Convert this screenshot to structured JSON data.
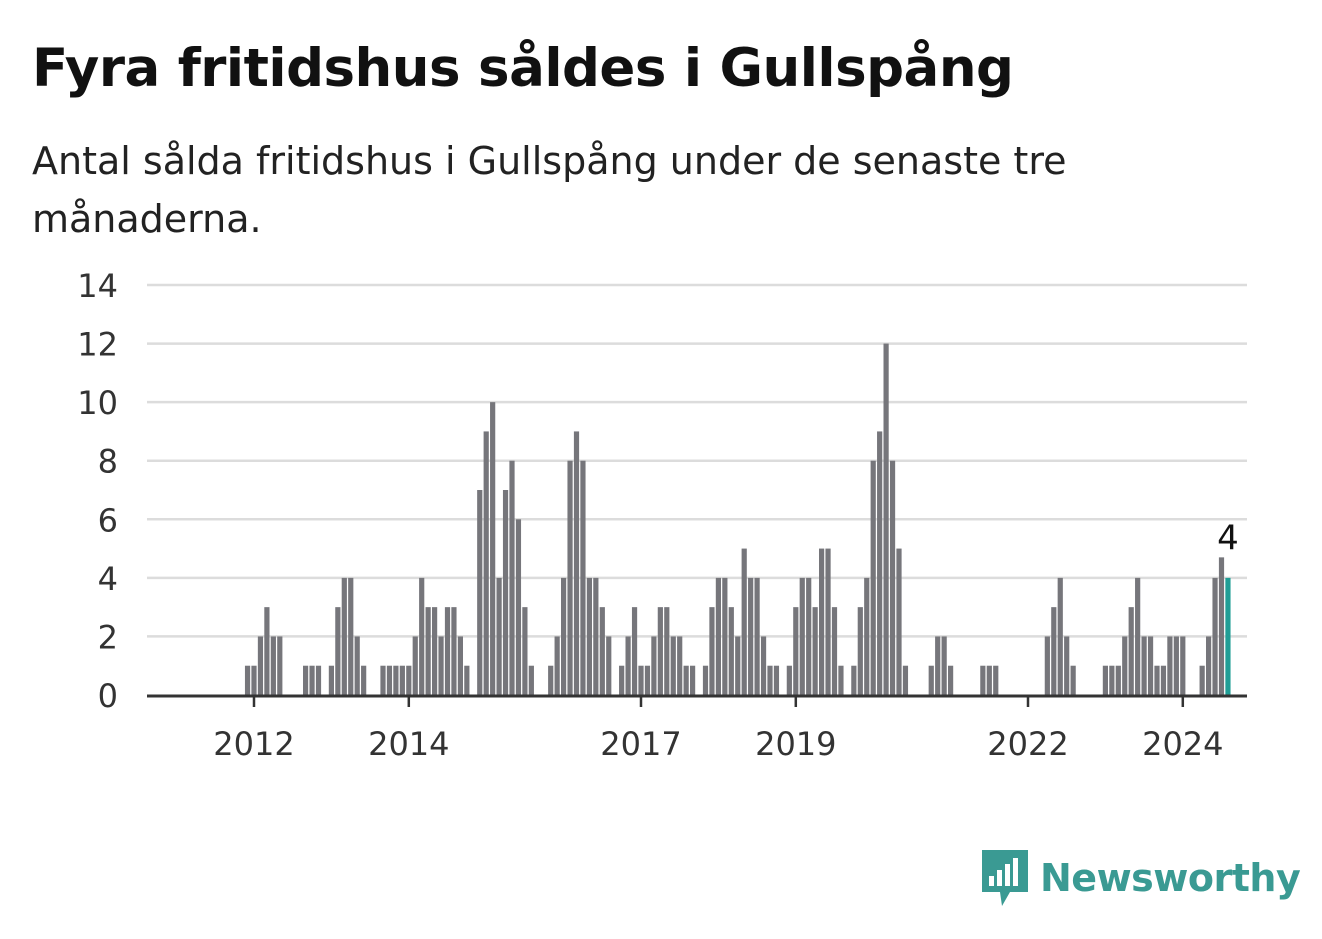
{
  "header": {
    "title": "Fyra fritidshus såldes i Gullspång",
    "subtitle": "Antal sålda fritidshus i Gullspång under de senaste tre månaderna."
  },
  "brand": {
    "name": "Newsworthy",
    "color": "#3a9a93",
    "icon": "bar-chart-speech-bubble-icon"
  },
  "chart_data": {
    "type": "bar",
    "start_year": 2011,
    "ylim": [
      0,
      14
    ],
    "yticks": [
      0,
      2,
      4,
      6,
      8,
      10,
      12,
      14
    ],
    "xtick_labels": [
      "2012",
      "2014",
      "2017",
      "2019",
      "2022",
      "2024"
    ],
    "xtick_years": [
      2012,
      2014,
      2017,
      2019,
      2022,
      2024
    ],
    "values": [
      0,
      0,
      0,
      0,
      0,
      0,
      0,
      0,
      0,
      0,
      0,
      1,
      1,
      2,
      3,
      2,
      2,
      0,
      0,
      0,
      1,
      1,
      1,
      0,
      1,
      3,
      4,
      4,
      2,
      1,
      0,
      0,
      1,
      1,
      1,
      1,
      1,
      2,
      4,
      3,
      3,
      2,
      3,
      3,
      2,
      1,
      0,
      7,
      9,
      10,
      4,
      7,
      8,
      6,
      3,
      1,
      0,
      0,
      1,
      2,
      4,
      8,
      9,
      8,
      4,
      4,
      3,
      2,
      0,
      1,
      2,
      3,
      1,
      1,
      2,
      3,
      3,
      2,
      2,
      1,
      1,
      0,
      1,
      3,
      4,
      4,
      3,
      2,
      5,
      4,
      4,
      2,
      1,
      1,
      0,
      1,
      3,
      4,
      4,
      3,
      5,
      5,
      3,
      1,
      0,
      1,
      3,
      4,
      8,
      9,
      12,
      8,
      5,
      1,
      0,
      0,
      0,
      1,
      2,
      2,
      1,
      0,
      0,
      0,
      0,
      1,
      1,
      1,
      0,
      0,
      0,
      0,
      0,
      0,
      0,
      2,
      3,
      4,
      2,
      1,
      0,
      0,
      0,
      0,
      1,
      1,
      1,
      2,
      3,
      4,
      2,
      2,
      1,
      1,
      2,
      2,
      2,
      0,
      0,
      1,
      2,
      4,
      4.7,
      4
    ],
    "annotation": {
      "label": "4",
      "value": 4
    },
    "bar_color": "#76767b",
    "highlight_color": "#1f9e96",
    "grid": true
  }
}
